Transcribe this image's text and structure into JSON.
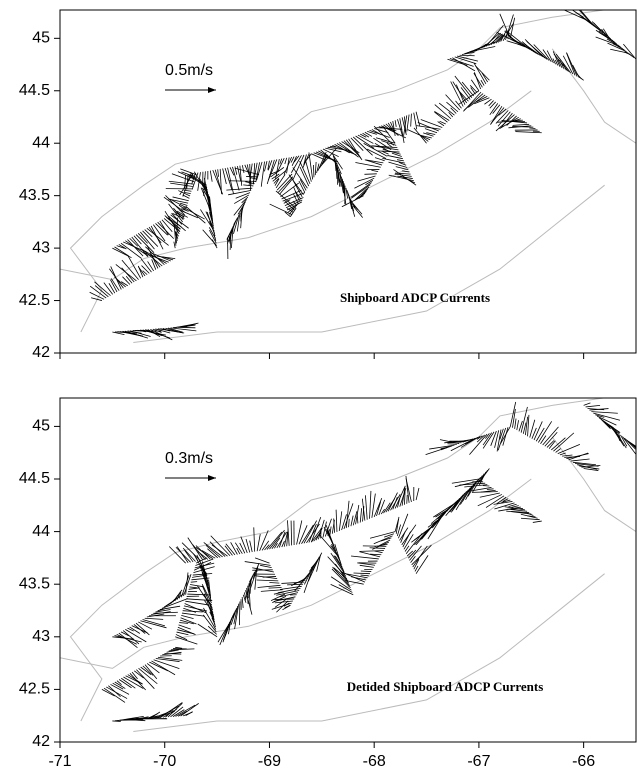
{
  "xlim": [
    -71,
    -65.5
  ],
  "xticks": [
    -71,
    -70,
    -69,
    -68,
    -67,
    -66
  ],
  "panels": [
    {
      "scale_label": "0.5m/s",
      "caption": "Shipboard ADCP Currents",
      "ylim": [
        42,
        45.27
      ],
      "yticks": [
        42,
        42.5,
        43,
        43.5,
        44,
        44.5,
        45
      ]
    },
    {
      "scale_label": "0.3m/s",
      "caption": "Detided Shipboard ADCP Currents",
      "ylim": [
        42,
        45.27
      ],
      "yticks": [
        42,
        42.5,
        43,
        43.5,
        44,
        44.5,
        45
      ]
    }
  ]
}
